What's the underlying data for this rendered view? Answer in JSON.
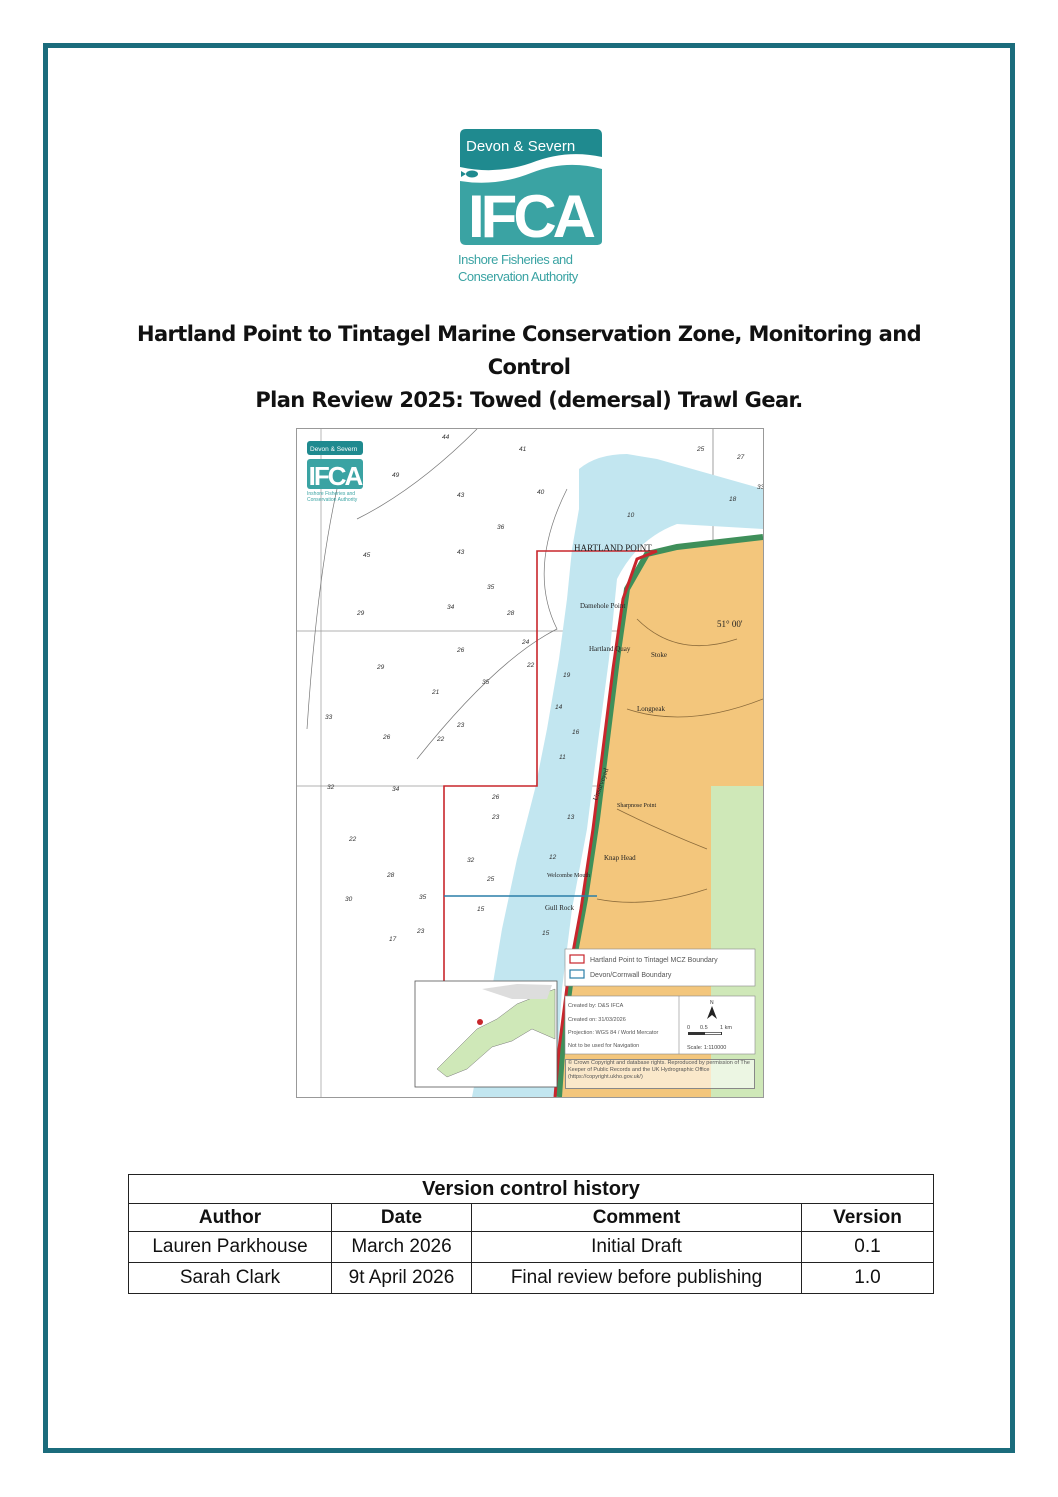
{
  "logo": {
    "top_text": "Devon & Severn",
    "main_text": "IFCA",
    "sub_line1": "Inshore Fisheries and",
    "sub_line2": "Conservation Authority",
    "color": "#3aa3a3",
    "dark_color": "#1f8a8f"
  },
  "title": {
    "line1": "Hartland Point to Tintagel Marine Conservation Zone, Monitoring and Control",
    "line2": "Plan Review 2025: Towed (demersal) Trawl Gear."
  },
  "map": {
    "place_labels": [
      "HARTLAND POINT",
      "Damehole Point",
      "Hartland Quay",
      "Stoke",
      "Longpeak",
      "Knap Head",
      "Gull Rock",
      "Welcombe Mouth",
      "Sharpnose Point",
      "Unsurveyed",
      "51° 00'"
    ],
    "depths": [
      "44",
      "41",
      "49",
      "43",
      "40",
      "36",
      "45",
      "43",
      "35",
      "34",
      "28",
      "29",
      "26",
      "24",
      "22",
      "29",
      "35",
      "21",
      "23",
      "33",
      "26",
      "22",
      "32",
      "34",
      "26",
      "22",
      "23",
      "32",
      "28",
      "30",
      "35",
      "25",
      "23",
      "17",
      "15",
      "14",
      "16",
      "19",
      "11",
      "13",
      "12",
      "15",
      "25",
      "27",
      "33",
      "18",
      "10"
    ],
    "legend": [
      {
        "label": "Hartland Point to Tintagel MCZ Boundary",
        "color": "#c8262c"
      },
      {
        "label": "Devon/Cornwall Boundary",
        "color": "#2a7fa8"
      }
    ],
    "info": {
      "created_by": "Created by: D&S IFCA",
      "created_on": "Created on: 31/03/2026",
      "projection": "Projection: WGS 84 / World Mercator",
      "warning": "Not to be used for Navigation"
    },
    "north": "N",
    "scale_ticks": [
      "0",
      "0.5",
      "1 km"
    ],
    "scale_text": "Scale: 1:110000",
    "copyright": "© Crown Copyright and database rights. Reproduced by permission of The Keeper of Public Records and the UK Hydrographic Office (https://copyright.ukho.gov.uk/)",
    "colors": {
      "sea_shallow": "#c2e6f0",
      "land": "#f3c67c",
      "green": "#cfe8b8",
      "mcz": "#c8262c",
      "boundary": "#2a7fa8"
    }
  },
  "table": {
    "caption": "Version control history",
    "headers": [
      "Author",
      "Date",
      "Comment",
      "Version"
    ],
    "rows": [
      [
        "Lauren Parkhouse",
        "March 2026",
        "Initial Draft",
        "0.1"
      ],
      [
        "Sarah Clark",
        "9t April 2026",
        "Final review before publishing",
        "1.0"
      ]
    ]
  },
  "frame_color": "#1b6c7c"
}
